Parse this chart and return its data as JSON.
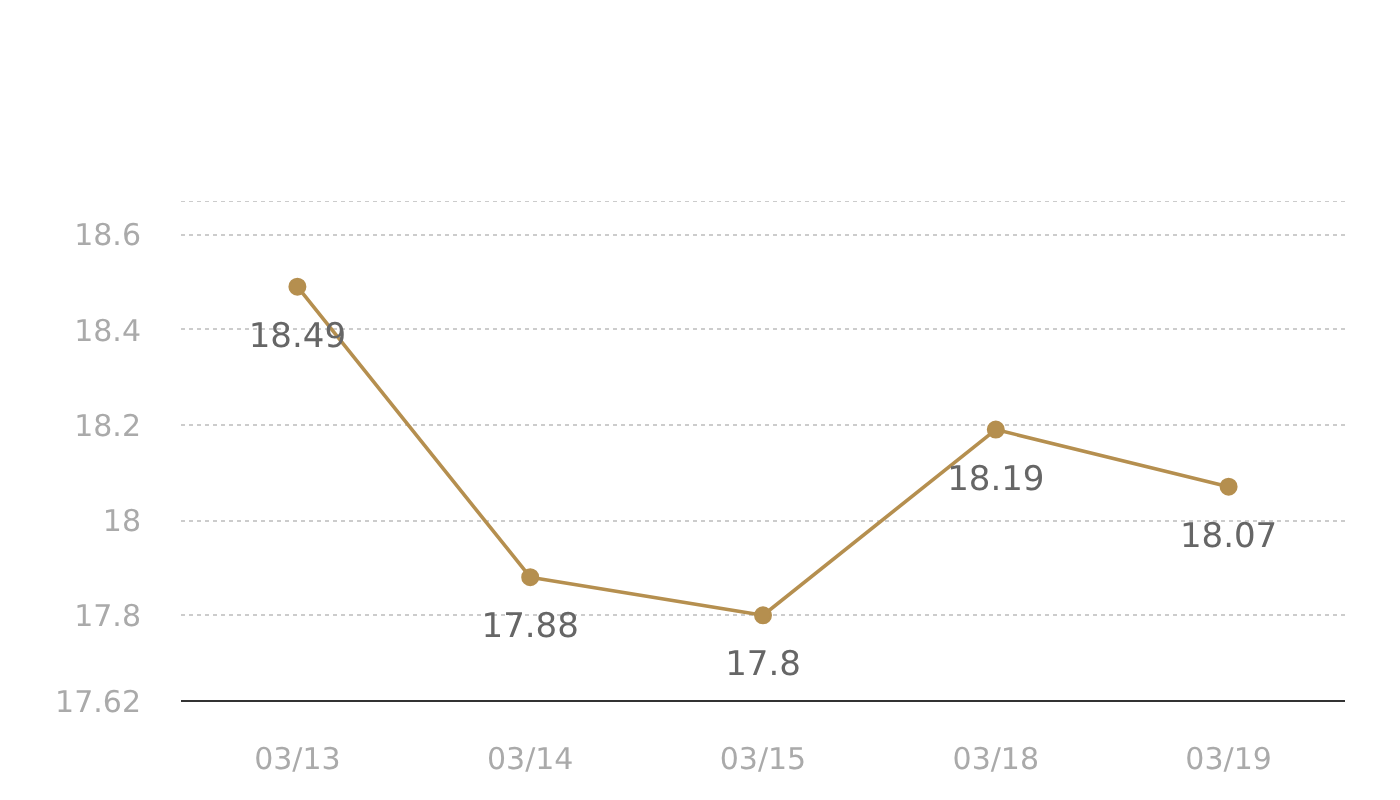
{
  "chart_data": {
    "type": "line",
    "categories": [
      "03/13",
      "03/14",
      "03/15",
      "03/18",
      "03/19"
    ],
    "series": [
      {
        "color": "#b58f4f",
        "values": [
          18.49,
          17.88,
          17.8,
          18.19,
          18.07
        ]
      }
    ],
    "ylim": [
      17.62,
      18.67
    ],
    "yticks": [
      17.62,
      17.8,
      {
        "value": 18,
        "label": "18"
      },
      18.2,
      18.4,
      18.6,
      {
        "value": 18.67,
        "label": null
      }
    ],
    "grid": "y",
    "marker": "circle",
    "line_style": "solid",
    "data_labels": true
  }
}
